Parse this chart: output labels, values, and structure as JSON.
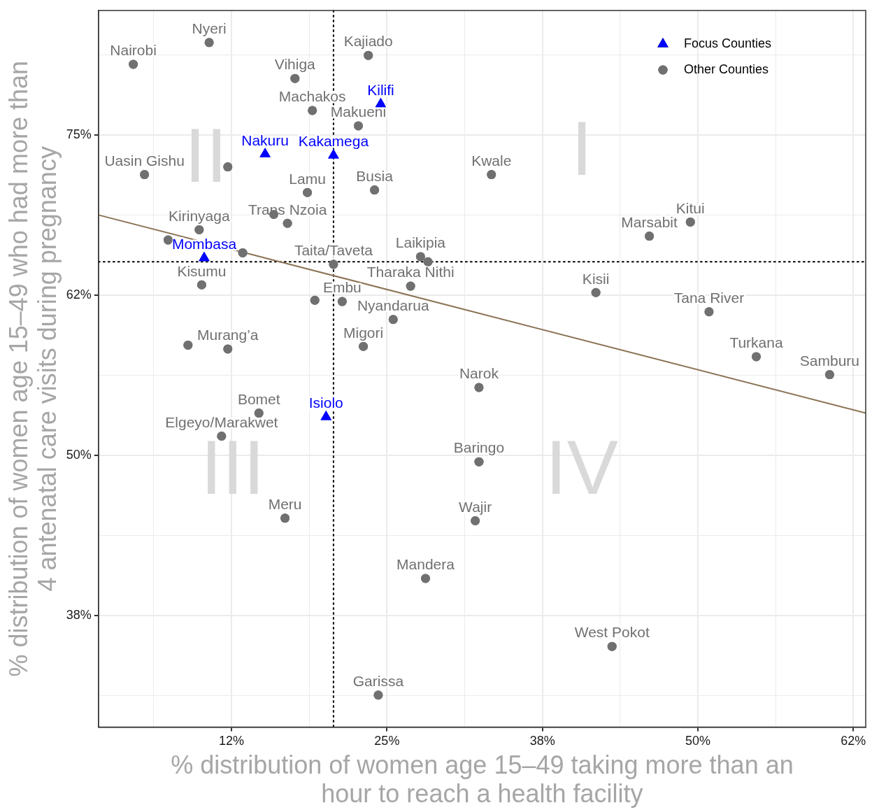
{
  "chart_data": {
    "type": "scatter",
    "xlabel": "% distribution of women age 15–49 taking more than an hour to reach a health facility",
    "ylabel": "% distribution of women age 15–49 who had more than 4 antenatal care visits during pregnancy",
    "xlim": [
      1.8,
      63.5
    ],
    "ylim": [
      28.8,
      84.7
    ],
    "xticks": [
      {
        "value": 6.25,
        "label": null
      },
      {
        "value": 12.5,
        "label": "12%"
      },
      {
        "value": 18.75,
        "label": null
      },
      {
        "value": 25,
        "label": "25%"
      },
      {
        "value": 31.25,
        "label": null
      },
      {
        "value": 37.5,
        "label": "38%"
      },
      {
        "value": 43.75,
        "label": null
      },
      {
        "value": 50,
        "label": "50%"
      },
      {
        "value": 56.25,
        "label": null
      },
      {
        "value": 62.5,
        "label": "62%"
      }
    ],
    "yticks": [
      {
        "value": 31.25,
        "label": null
      },
      {
        "value": 37.5,
        "label": "38%"
      },
      {
        "value": 43.75,
        "label": null
      },
      {
        "value": 50,
        "label": "50%"
      },
      {
        "value": 56.25,
        "label": null
      },
      {
        "value": 62.5,
        "label": "62%"
      },
      {
        "value": 68.75,
        "label": null
      },
      {
        "value": 75,
        "label": "75%"
      },
      {
        "value": 81.25,
        "label": null
      }
    ],
    "grid": true,
    "legend": "top right",
    "ref_lines": [
      {
        "axis": "x",
        "value": 20.7,
        "color": "#000000",
        "line_style": "dotted"
      },
      {
        "axis": "y",
        "value": 65.1,
        "color": "#000000",
        "line_style": "dotted"
      }
    ],
    "annotations": [
      "I",
      "II",
      "III",
      "IV"
    ],
    "series": [
      {
        "name": "Focus Counties",
        "color": "#0000ff",
        "marker": "triangle",
        "x": [
          24.5,
          15.2,
          20.7,
          10.3,
          20.1
        ],
        "values": [
          77.4,
          73.5,
          73.4,
          65.4,
          53.0
        ],
        "value_labels": [
          "Kilifi",
          "Nakuru",
          "Kakamega",
          "Mombasa",
          "Isiolo"
        ]
      },
      {
        "name": "Other Counties",
        "color": "#707070",
        "marker": "circle",
        "x": [
          10.7,
          4.6,
          23.5,
          17.6,
          19.0,
          22.7,
          5.5,
          12.2,
          33.4,
          18.6,
          24.0,
          15.9,
          17.0,
          9.9,
          7.4,
          13.4,
          49.4,
          46.1,
          20.7,
          27.7,
          28.3,
          10.1,
          26.9,
          41.8,
          19.2,
          21.4,
          50.9,
          25.5,
          23.1,
          9.0,
          12.2,
          54.7,
          60.6,
          32.4,
          14.7,
          11.7,
          32.4,
          16.8,
          32.1,
          28.1,
          43.1,
          24.3
        ],
        "values": [
          82.2,
          80.5,
          81.2,
          79.4,
          76.9,
          75.7,
          71.9,
          72.5,
          71.9,
          70.5,
          70.7,
          68.8,
          68.1,
          67.6,
          66.8,
          65.8,
          68.2,
          67.1,
          64.9,
          65.5,
          65.1,
          63.3,
          63.2,
          62.7,
          62.1,
          62.0,
          61.2,
          60.6,
          58.5,
          58.6,
          58.3,
          57.7,
          56.3,
          55.3,
          53.3,
          51.5,
          49.5,
          45.1,
          44.9,
          40.4,
          35.1,
          31.3
        ],
        "value_labels": [
          "Nyeri",
          "Nairobi",
          "Kajiado",
          "Vihiga",
          "Machakos",
          "Makueni",
          "Uasin Gishu",
          null,
          "Kwale",
          "Lamu",
          "Busia",
          null,
          "Trans Nzoia",
          "Kirinyaga",
          null,
          null,
          "Kitui",
          "Marsabit",
          "Taita/Taveta",
          "Laikipia",
          null,
          "Kisumu",
          "Tharaka Nithi",
          "Kisii",
          null,
          "Embu",
          "Tana River",
          "Nyandarua",
          "Migori",
          null,
          "Murang’a",
          "Turkana",
          "Samburu",
          "Narok",
          "Bomet",
          "Elgeyo/Marakwet",
          "Baringo",
          "Meru",
          "Wajir",
          "Mandera",
          "West Pokot",
          "Garissa"
        ]
      },
      {
        "type": "line",
        "color": "#8b7355",
        "marker": "none",
        "x": [
          1.8,
          63.5
        ],
        "values": [
          68.75,
          53.3
        ]
      }
    ]
  }
}
